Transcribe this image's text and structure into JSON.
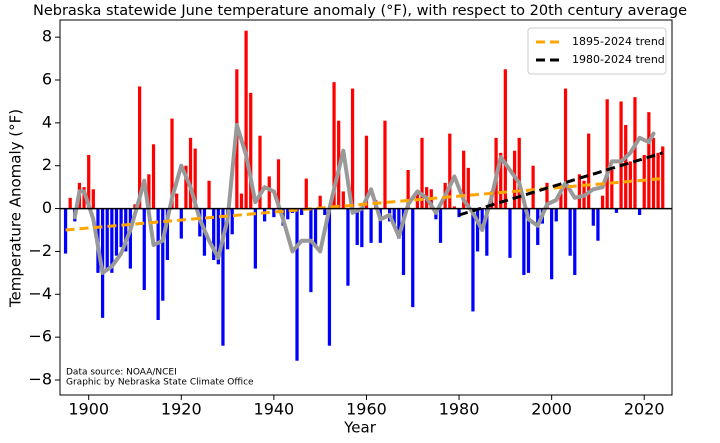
{
  "chart_data": {
    "type": "bar",
    "title": "Nebraska statewide June temperature anomaly (°F), with respect to 20th century average",
    "x_label": "Year",
    "y_label": "Temperature Anomaly (°F)",
    "annotations": [
      "Data source: NOAA/NCEI",
      "Graphic by Nebraska State Climate Office"
    ],
    "xlim": [
      1893.8,
      2026
    ],
    "xticks": [
      1900,
      1920,
      1940,
      1960,
      1980,
      2000,
      2020
    ],
    "ylim": [
      -8.7,
      8.8
    ],
    "yticks": [
      {
        "value": -8,
        "label": "−8"
      },
      {
        "value": -6,
        "label": "−6"
      },
      {
        "value": -4,
        "label": "−4"
      },
      {
        "value": -2,
        "label": "−2"
      },
      0,
      2,
      4,
      6,
      8
    ],
    "legend": "upper right",
    "series": [
      {
        "type": "bar",
        "positive_color": "#ff0000",
        "negative_color": "#0000ff",
        "x": [
          1895,
          1896,
          1897,
          1898,
          1899,
          1900,
          1901,
          1902,
          1903,
          1904,
          1905,
          1906,
          1907,
          1908,
          1909,
          1910,
          1911,
          1912,
          1913,
          1914,
          1915,
          1916,
          1917,
          1918,
          1919,
          1920,
          1921,
          1922,
          1923,
          1924,
          1925,
          1926,
          1927,
          1928,
          1929,
          1930,
          1931,
          1932,
          1933,
          1934,
          1935,
          1936,
          1937,
          1938,
          1939,
          1940,
          1941,
          1942,
          1943,
          1944,
          1945,
          1946,
          1947,
          1948,
          1949,
          1950,
          1951,
          1952,
          1953,
          1954,
          1955,
          1956,
          1957,
          1958,
          1959,
          1960,
          1961,
          1962,
          1963,
          1964,
          1965,
          1966,
          1967,
          1968,
          1969,
          1970,
          1971,
          1972,
          1973,
          1974,
          1975,
          1976,
          1977,
          1978,
          1979,
          1980,
          1981,
          1982,
          1983,
          1984,
          1985,
          1986,
          1987,
          1988,
          1989,
          1990,
          1991,
          1992,
          1993,
          1994,
          1995,
          1996,
          1997,
          1998,
          1999,
          2000,
          2001,
          2002,
          2003,
          2004,
          2005,
          2006,
          2007,
          2008,
          2009,
          2010,
          2011,
          2012,
          2013,
          2014,
          2015,
          2016,
          2017,
          2018,
          2019,
          2020,
          2021,
          2022,
          2023,
          2024
        ],
        "values": [
          -2.1,
          0.5,
          -0.6,
          1.2,
          1.0,
          2.5,
          0.9,
          -3.0,
          -5.1,
          -2.9,
          -3.0,
          -2.2,
          -1.8,
          -2.0,
          -2.8,
          0.2,
          5.7,
          -3.8,
          1.6,
          3.0,
          -5.2,
          -4.3,
          -2.4,
          4.2,
          0.7,
          -1.4,
          2.0,
          3.3,
          2.8,
          -1.3,
          -2.2,
          1.3,
          -2.4,
          -2.6,
          -6.4,
          -1.9,
          -1.2,
          6.5,
          0.7,
          8.3,
          5.4,
          -2.8,
          3.4,
          -0.6,
          1.5,
          -0.4,
          2.3,
          -0.8,
          -0.5,
          -0.2,
          -7.1,
          -0.3,
          1.4,
          -3.9,
          -1.8,
          0.6,
          -0.3,
          -6.4,
          5.9,
          4.1,
          0.8,
          -3.6,
          5.6,
          -1.7,
          -1.8,
          3.4,
          -1.6,
          0.4,
          -1.6,
          4.1,
          -0.6,
          -0.8,
          -1.4,
          -3.1,
          1.8,
          -4.6,
          0.7,
          3.3,
          1.0,
          0.9,
          -0.5,
          -1.6,
          1.2,
          3.5,
          0.1,
          -0.4,
          2.7,
          1.9,
          -4.8,
          -2.0,
          -0.8,
          -2.2,
          0.8,
          3.3,
          2.6,
          6.5,
          -2.3,
          2.7,
          3.3,
          -3.1,
          -3.0,
          2.0,
          -1.7,
          -0.7,
          1.2,
          -3.3,
          -0.6,
          0.7,
          5.6,
          -2.2,
          -3.1,
          1.6,
          1.3,
          3.5,
          -0.8,
          -1.5,
          0.6,
          5.1,
          1.8,
          -0.2,
          5.0,
          3.9,
          2.2,
          5.2,
          -0.3,
          2.5,
          4.5,
          3.3,
          2.6,
          2.9
        ]
      },
      {
        "type": "line",
        "color": "#999999",
        "width": 4,
        "x": [
          1897,
          1898,
          1899,
          1901,
          1903,
          1905,
          1907,
          1909,
          1911,
          1912,
          1914,
          1916,
          1917,
          1918,
          1920,
          1922,
          1924,
          1926,
          1928,
          1930,
          1932,
          1934,
          1936,
          1938,
          1940,
          1942,
          1944,
          1946,
          1948,
          1950,
          1952,
          1954,
          1955,
          1957,
          1959,
          1961,
          1963,
          1965,
          1967,
          1969,
          1971,
          1973,
          1975,
          1977,
          1979,
          1981,
          1983,
          1985,
          1987,
          1989,
          1991,
          1993,
          1995,
          1997,
          1999,
          2001,
          2003,
          2005,
          2007,
          2009,
          2011,
          2013,
          2015,
          2017,
          2019,
          2021,
          2022
        ],
        "values": [
          -0.4,
          0.8,
          0.8,
          -0.5,
          -3.0,
          -2.7,
          -2.1,
          -1.0,
          0.5,
          1.3,
          -1.7,
          -1.5,
          -0.5,
          0.5,
          2.0,
          1.0,
          -0.5,
          -1.5,
          -2.3,
          -0.5,
          3.9,
          2.5,
          0.3,
          1.0,
          0.8,
          -0.5,
          -2.0,
          -1.5,
          -1.5,
          -2.0,
          0.0,
          1.8,
          2.7,
          -0.2,
          0.0,
          0.9,
          -0.5,
          -0.3,
          -1.3,
          0.2,
          0.8,
          0.5,
          -0.2,
          0.6,
          1.5,
          0.4,
          -0.2,
          -1.0,
          0.5,
          2.4,
          1.8,
          1.2,
          -0.5,
          -0.8,
          0.2,
          0.4,
          1.2,
          0.5,
          0.6,
          0.9,
          1.0,
          2.2,
          2.2,
          2.6,
          3.3,
          3.1,
          3.5
        ]
      },
      {
        "type": "line",
        "name": "1895-2024 trend",
        "color": "#ffa500",
        "width": 3,
        "dashed": true,
        "x": [
          1895,
          2024
        ],
        "values": [
          -1.0,
          1.4
        ]
      },
      {
        "type": "line",
        "name": "1980-2024 trend",
        "color": "#000000",
        "width": 3,
        "dashed": true,
        "x": [
          1980,
          2024
        ],
        "values": [
          -0.3,
          2.6
        ]
      }
    ]
  }
}
